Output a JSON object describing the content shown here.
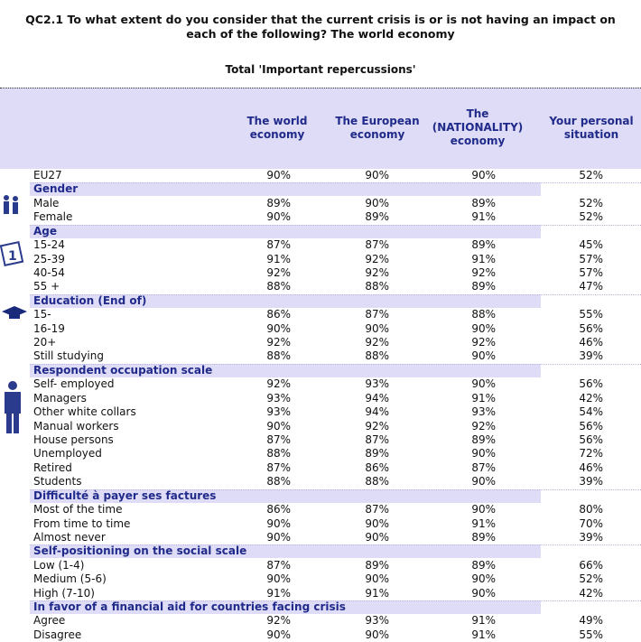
{
  "title": "QC2.1 To what extent do you consider that the current crisis is or is not having an impact on each of the following? The world economy",
  "subtitle": "Total 'Important repercussions'",
  "columns": [
    "The world economy",
    "The European economy",
    "The (NATIONALITY) economy",
    "Your personal situation"
  ],
  "total": {
    "label": "EU27",
    "values": [
      "90%",
      "90%",
      "90%",
      "52%"
    ]
  },
  "sections": [
    {
      "title": "Gender",
      "rows": [
        {
          "label": "Male",
          "values": [
            "89%",
            "90%",
            "89%",
            "52%"
          ]
        },
        {
          "label": "Female",
          "values": [
            "90%",
            "89%",
            "91%",
            "52%"
          ]
        }
      ]
    },
    {
      "title": "Age",
      "rows": [
        {
          "label": "15-24",
          "values": [
            "87%",
            "87%",
            "89%",
            "45%"
          ]
        },
        {
          "label": "25-39",
          "values": [
            "91%",
            "92%",
            "91%",
            "57%"
          ]
        },
        {
          "label": "40-54",
          "values": [
            "92%",
            "92%",
            "92%",
            "57%"
          ]
        },
        {
          "label": "55 +",
          "values": [
            "88%",
            "88%",
            "89%",
            "47%"
          ]
        }
      ]
    },
    {
      "title": "Education (End of)",
      "rows": [
        {
          "label": "15-",
          "values": [
            "86%",
            "87%",
            "88%",
            "55%"
          ]
        },
        {
          "label": "16-19",
          "values": [
            "90%",
            "90%",
            "90%",
            "56%"
          ]
        },
        {
          "label": "20+",
          "values": [
            "92%",
            "92%",
            "92%",
            "46%"
          ]
        },
        {
          "label": "Still studying",
          "values": [
            "88%",
            "88%",
            "90%",
            "39%"
          ]
        }
      ]
    },
    {
      "title": "Respondent occupation scale",
      "rows": [
        {
          "label": "Self- employed",
          "values": [
            "92%",
            "93%",
            "90%",
            "56%"
          ]
        },
        {
          "label": "Managers",
          "values": [
            "93%",
            "94%",
            "91%",
            "42%"
          ]
        },
        {
          "label": "Other white collars",
          "values": [
            "93%",
            "94%",
            "93%",
            "54%"
          ]
        },
        {
          "label": "Manual workers",
          "values": [
            "90%",
            "92%",
            "92%",
            "56%"
          ]
        },
        {
          "label": "House persons",
          "values": [
            "87%",
            "87%",
            "89%",
            "56%"
          ]
        },
        {
          "label": "Unemployed",
          "values": [
            "88%",
            "89%",
            "90%",
            "72%"
          ]
        },
        {
          "label": "Retired",
          "values": [
            "87%",
            "86%",
            "87%",
            "46%"
          ]
        },
        {
          "label": "Students",
          "values": [
            "88%",
            "88%",
            "90%",
            "39%"
          ]
        }
      ]
    },
    {
      "title": "Difficulté à payer ses factures",
      "rows": [
        {
          "label": "Most of the time",
          "values": [
            "86%",
            "87%",
            "90%",
            "80%"
          ]
        },
        {
          "label": "From time to time",
          "values": [
            "90%",
            "90%",
            "91%",
            "70%"
          ]
        },
        {
          "label": "Almost never",
          "values": [
            "90%",
            "90%",
            "89%",
            "39%"
          ]
        }
      ]
    },
    {
      "title": "Self-positioning on the social scale",
      "rows": [
        {
          "label": "Low (1-4)",
          "values": [
            "87%",
            "89%",
            "89%",
            "66%"
          ]
        },
        {
          "label": "Medium (5-6)",
          "values": [
            "90%",
            "90%",
            "90%",
            "52%"
          ]
        },
        {
          "label": "High (7-10)",
          "values": [
            "91%",
            "91%",
            "90%",
            "42%"
          ]
        }
      ]
    },
    {
      "title": "In favor of a financial aid for countries facing crisis",
      "rows": [
        {
          "label": "Agree",
          "values": [
            "92%",
            "93%",
            "91%",
            "49%"
          ]
        },
        {
          "label": "Disagree",
          "values": [
            "90%",
            "90%",
            "91%",
            "55%"
          ]
        }
      ]
    }
  ]
}
